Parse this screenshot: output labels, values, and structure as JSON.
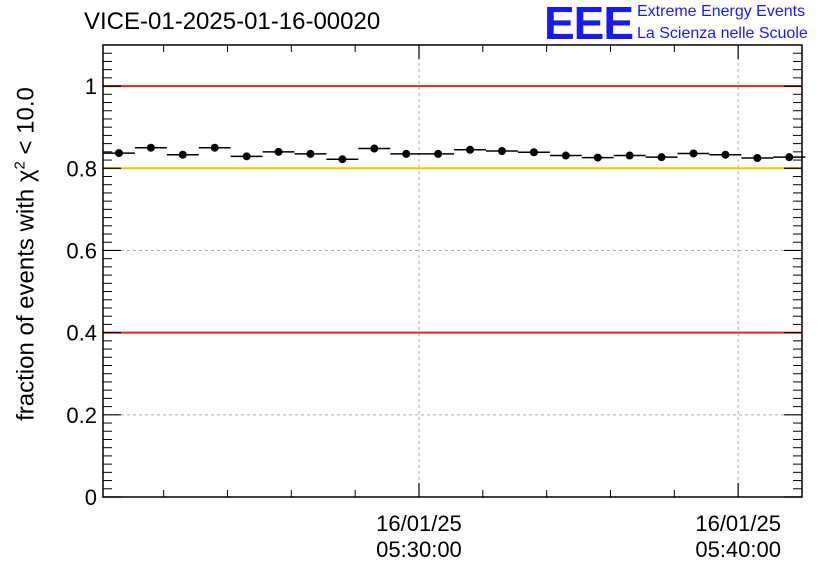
{
  "chart_data": {
    "type": "scatter",
    "title": "VICE-01-2025-01-16-00020",
    "ylabel_prefix": "fraction of events with ",
    "ylabel_symbol": "χ",
    "ylabel_exp": "2",
    "ylabel_suffix": " < 10.0",
    "ylim": [
      0,
      1.1
    ],
    "yticks": [
      {
        "v": 0,
        "label": "0"
      },
      {
        "v": 0.2,
        "label": "0.2"
      },
      {
        "v": 0.4,
        "label": "0.4"
      },
      {
        "v": 0.6,
        "label": "0.6"
      },
      {
        "v": 0.8,
        "label": "0.8"
      },
      {
        "v": 1,
        "label": "1"
      }
    ],
    "xlim_min": [
      20.1,
      42.0
    ],
    "xticks": [
      {
        "v": 30,
        "date": "16/01/25",
        "time": "05:30:00"
      },
      {
        "v": 40,
        "date": "16/01/25",
        "time": "05:40:00"
      }
    ],
    "bin_width_min": 1.0,
    "x_min": [
      20.6,
      21.6,
      22.6,
      23.6,
      24.6,
      25.6,
      26.6,
      27.6,
      28.6,
      29.6,
      30.6,
      31.6,
      32.6,
      33.6,
      34.6,
      35.6,
      36.6,
      37.6,
      38.6,
      39.6,
      40.6,
      41.6
    ],
    "values": [
      0.837,
      0.85,
      0.833,
      0.85,
      0.829,
      0.84,
      0.835,
      0.822,
      0.848,
      0.835,
      0.835,
      0.845,
      0.842,
      0.839,
      0.831,
      0.826,
      0.831,
      0.827,
      0.836,
      0.833,
      0.825,
      0.827
    ],
    "reference_lines": [
      {
        "y": 1.0,
        "color": "#e8221a"
      },
      {
        "y": 0.8,
        "color": "#f5c400"
      },
      {
        "y": 0.4,
        "color": "#e8221a"
      }
    ],
    "grid": true
  },
  "logo": {
    "mark": "EEE",
    "line1": "Extreme Energy Events",
    "line2": "La Scienza nelle Scuole"
  }
}
